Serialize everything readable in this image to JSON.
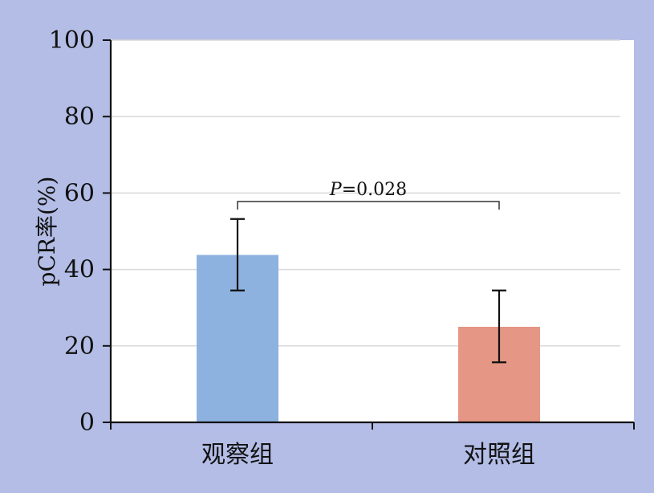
{
  "chart_data": {
    "type": "bar",
    "categories": [
      "观察组",
      "对照组"
    ],
    "values": [
      43.8,
      25.0
    ],
    "error_low": [
      34.5,
      15.7
    ],
    "error_high": [
      53.2,
      34.5
    ],
    "bar_colors": [
      "#8db2df",
      "#e59685"
    ],
    "ylabel": "pCR率(%)",
    "ylim": [
      0,
      100
    ],
    "yticks": [
      "0",
      "20",
      "40",
      "60",
      "80",
      "100"
    ],
    "grid": true,
    "annotation": {
      "italic": "P",
      "rest": "=0.028"
    }
  }
}
